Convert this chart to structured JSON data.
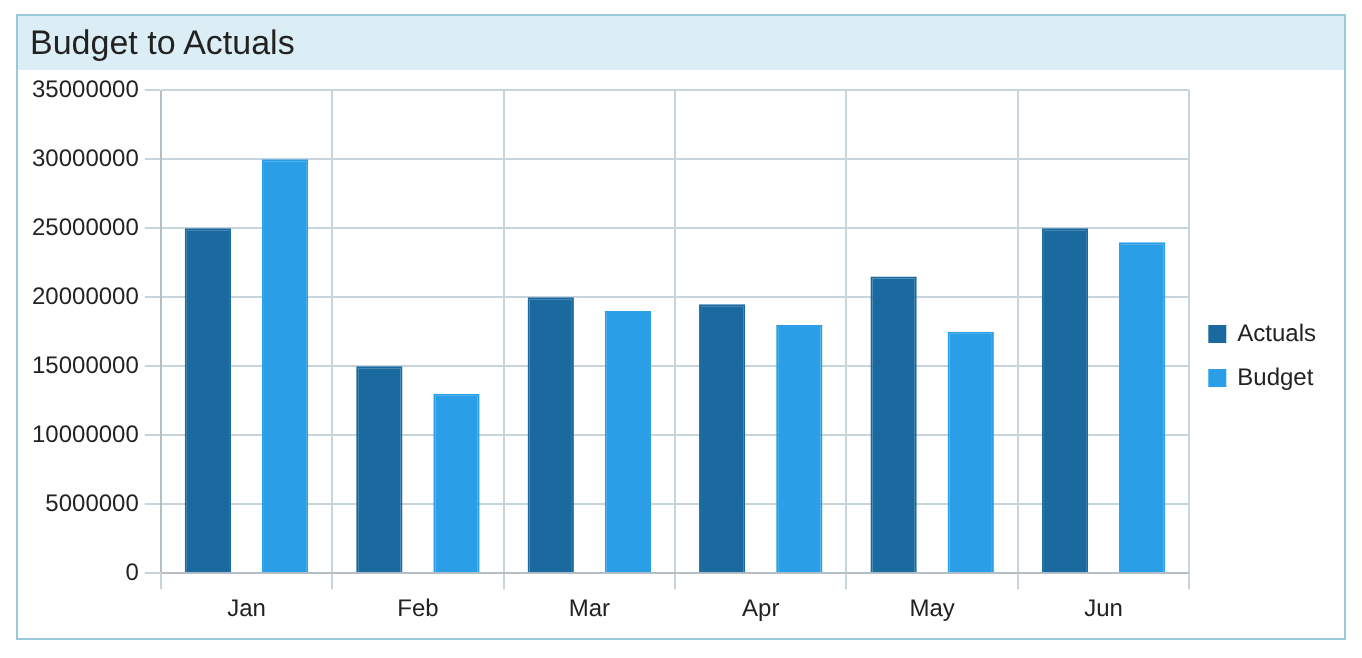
{
  "chart_data": {
    "type": "bar",
    "title": "Budget to Actuals",
    "categories": [
      "Jan",
      "Feb",
      "Mar",
      "Apr",
      "May",
      "Jun"
    ],
    "series": [
      {
        "name": "Actuals",
        "color": "#1a6aa0",
        "values": [
          25000000,
          15000000,
          20000000,
          19500000,
          21500000,
          25000000
        ]
      },
      {
        "name": "Budget",
        "color": "#2a9fe8",
        "values": [
          30000000,
          13000000,
          19000000,
          18000000,
          17500000,
          24000000
        ]
      }
    ],
    "ylim": [
      0,
      35000000
    ],
    "yticks": [
      0,
      5000000,
      10000000,
      15000000,
      20000000,
      25000000,
      30000000,
      35000000
    ],
    "grid": true,
    "legend": "right"
  }
}
